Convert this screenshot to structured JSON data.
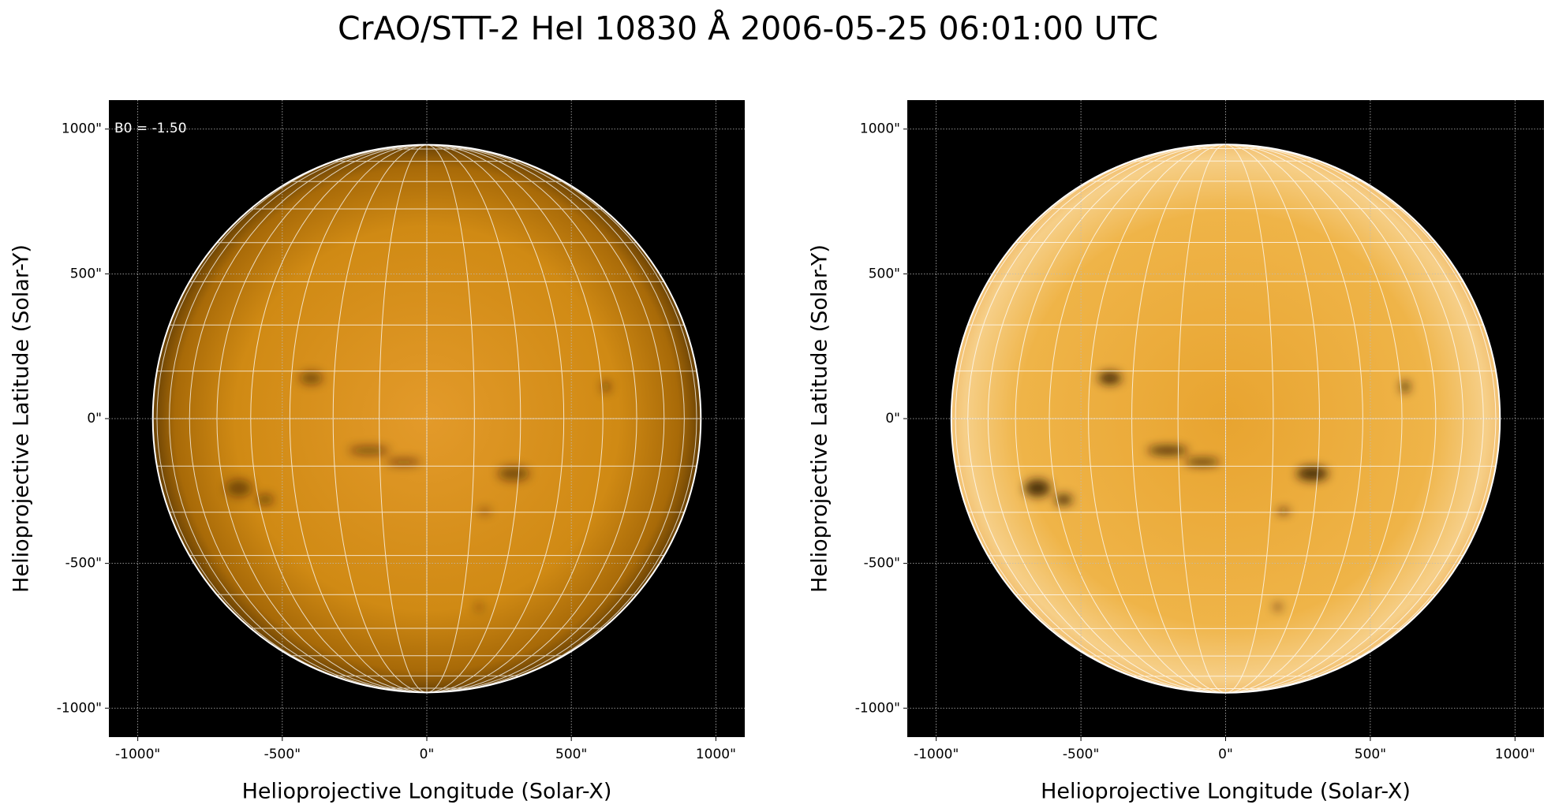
{
  "title": "CrAO/STT-2 HeI 10830 Å 2006-05-25 06:01:00 UTC",
  "chart_data": [
    {
      "type": "image",
      "annotation": "B0 = -1.50",
      "xlabel": "Helioprojective Longitude (Solar-X)",
      "ylabel": "Helioprojective Latitude (Solar-Y)",
      "xlim": [
        -1100,
        1100
      ],
      "ylim": [
        -1100,
        1100
      ],
      "xticks": [
        {
          "value": -1000,
          "label": "-1000\""
        },
        {
          "value": -500,
          "label": "-500\""
        },
        {
          "value": 0,
          "label": "0\""
        },
        {
          "value": 500,
          "label": "500\""
        },
        {
          "value": 1000,
          "label": "1000\""
        }
      ],
      "yticks": [
        {
          "value": -1000,
          "label": "-1000\""
        },
        {
          "value": -500,
          "label": "-500\""
        },
        {
          "value": 0,
          "label": "0\""
        },
        {
          "value": 500,
          "label": "500\""
        },
        {
          "value": 1000,
          "label": "1000\""
        }
      ],
      "disk_radius": 948,
      "grid": true
    },
    {
      "type": "image",
      "xlabel": "Helioprojective Longitude (Solar-X)",
      "ylabel": "Helioprojective Latitude (Solar-Y)",
      "xlim": [
        -1100,
        1100
      ],
      "ylim": [
        -1100,
        1100
      ],
      "xticks": [
        {
          "value": -1000,
          "label": "-1000\""
        },
        {
          "value": -500,
          "label": "-500\""
        },
        {
          "value": 0,
          "label": "0\""
        },
        {
          "value": 500,
          "label": "500\""
        },
        {
          "value": 1000,
          "label": "1000\""
        }
      ],
      "yticks": [
        {
          "value": -1000,
          "label": "-1000\""
        },
        {
          "value": -500,
          "label": "-500\""
        },
        {
          "value": 0,
          "label": "0\""
        },
        {
          "value": 500,
          "label": "500\""
        },
        {
          "value": 1000,
          "label": "1000\""
        }
      ],
      "disk_radius": 948,
      "grid": true
    }
  ]
}
